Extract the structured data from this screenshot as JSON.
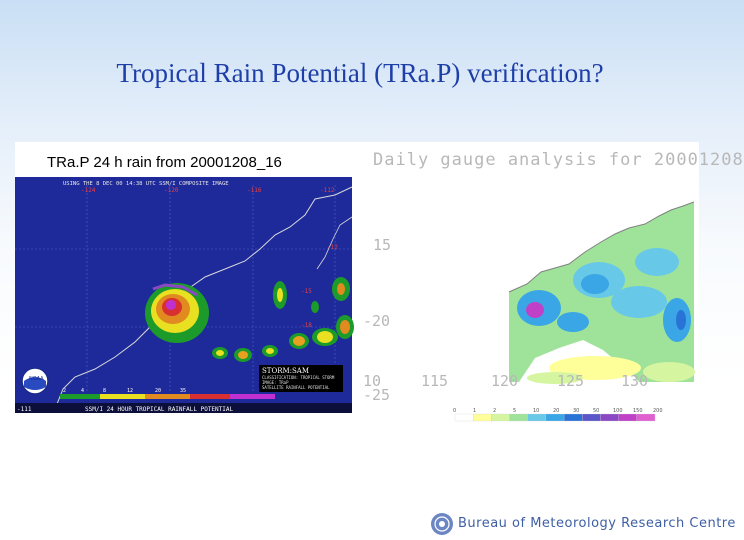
{
  "slide": {
    "title": "Tropical Rain Potential (TRa.P) verification?"
  },
  "left_panel": {
    "caption": "TRa.P 24 h rain from 20001208_16",
    "sat_header": "USING THE 8 DEC 00 14:38 UTC SSM/I COMPOSITE IMAGE",
    "lon_labels": [
      "-124",
      "-120",
      "-116",
      "-112"
    ],
    "lat_labels": [
      "-12",
      "-15",
      "-18"
    ],
    "storm_label": "STORM:SAM",
    "storm_lines": [
      "CLASSIFICATION: TROPICAL STORM",
      "IMAGE: TRaP",
      "SATELLITE RAINFALL POTENTIAL"
    ],
    "legend_ticks": [
      "2",
      "4",
      "8",
      "12",
      "20",
      "35"
    ],
    "footer": "SSM/I 24 HOUR TROPICAL RAINFALL POTENTIAL",
    "corner": "-111",
    "logo_text": "NOAA"
  },
  "right_panel": {
    "title": "Daily gauge analysis for 20001208",
    "y_ticks": [
      "15",
      "-20",
      "-25"
    ],
    "x_ticks": [
      "10",
      "115",
      "120",
      "125",
      "130"
    ],
    "scale_ticks": [
      "0",
      "1",
      "2",
      "5",
      "10",
      "20",
      "30",
      "50",
      "100",
      "150",
      "200"
    ],
    "scale_colors": [
      "#ffffff",
      "#ffff9a",
      "#d6f5a0",
      "#9fe39a",
      "#68c8e8",
      "#3aa6e6",
      "#2a73d6",
      "#5a55c8",
      "#8a48c4",
      "#c040c8",
      "#e060d0"
    ]
  },
  "footer": {
    "org": "Bureau of Meteorology Research Centre",
    "logo_icon": "bom-globe-icon"
  }
}
